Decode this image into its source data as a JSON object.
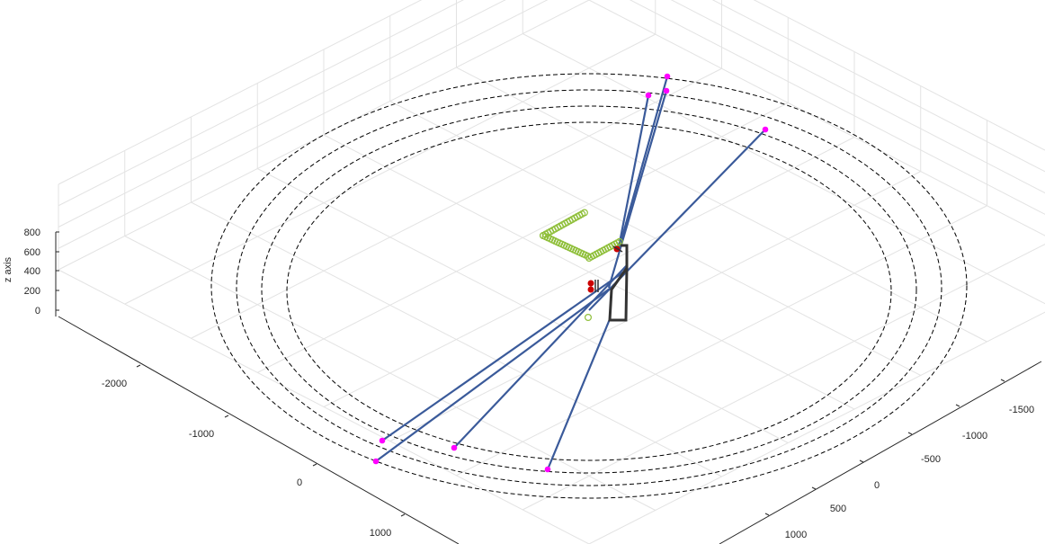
{
  "chart_data": {
    "type": "line3d",
    "title": "",
    "xlabel": "",
    "ylabel": "",
    "zlabel": "z axis",
    "grid": true,
    "x_ticks": [
      "-2000",
      "-1000",
      "0",
      "1000"
    ],
    "y_ticks": [
      "-1500",
      "-1000",
      "-500",
      "0",
      "500",
      "1000"
    ],
    "z_ticks": [
      "800",
      "600",
      "400",
      "200",
      "0"
    ],
    "ranges": {
      "x": [
        -2500,
        1500
      ],
      "y": [
        -2000,
        1200
      ],
      "z": [
        0,
        800
      ]
    },
    "colors": {
      "cable": "#3a5a9a",
      "anchor": "#ff00ff",
      "trajectory": "#8fbf3a",
      "frame": "#333333",
      "payload": "#cc0000",
      "circle": "#000000"
    },
    "series": [
      {
        "kind": "circle",
        "style": "dashed",
        "radius_values": [
          2250,
          2150,
          2050,
          1950
        ],
        "z": 0
      },
      {
        "kind": "anchor_points",
        "points": [
          [
            -2180,
            1050,
            0
          ],
          [
            -1950,
            1120,
            0
          ],
          [
            -1100,
            1050,
            0
          ],
          [
            -600,
            620,
            0
          ],
          [
            1220,
            -1480,
            0
          ],
          [
            1200,
            -1380,
            0
          ],
          [
            1100,
            -1250,
            0
          ],
          [
            1050,
            -650,
            0
          ]
        ]
      },
      {
        "kind": "cable_segments",
        "lines": [
          [
            [
              -2180,
              1050,
              0
            ],
            [
              -40,
              30,
              260
            ]
          ],
          [
            [
              -1950,
              1120,
              0
            ],
            [
              60,
              -40,
              80
            ]
          ],
          [
            [
              -1100,
              1050,
              0
            ],
            [
              120,
              -90,
              300
            ]
          ],
          [
            [
              -600,
              620,
              0
            ],
            [
              100,
              -80,
              120
            ]
          ],
          [
            [
              1220,
              -1480,
              0
            ],
            [
              60,
              -20,
              180
            ]
          ],
          [
            [
              1200,
              -1380,
              0
            ],
            [
              -40,
              40,
              220
            ]
          ],
          [
            [
              1100,
              -1250,
              0
            ],
            [
              -10,
              60,
              160
            ]
          ],
          [
            [
              1050,
              -650,
              0
            ],
            [
              20,
              -40,
              260
            ]
          ]
        ]
      },
      {
        "kind": "trajectory",
        "points": [
          [
            -150,
            -320,
            520
          ],
          [
            -130,
            -300,
            520
          ],
          [
            -110,
            -280,
            520
          ],
          [
            -90,
            -260,
            520
          ],
          [
            -70,
            -240,
            520
          ],
          [
            -50,
            -220,
            520
          ],
          [
            -30,
            -200,
            520
          ],
          [
            -10,
            -180,
            520
          ],
          [
            10,
            -160,
            520
          ],
          [
            30,
            -140,
            520
          ],
          [
            40,
            -120,
            520
          ],
          [
            20,
            -90,
            520
          ],
          [
            0,
            -60,
            520
          ],
          [
            -20,
            -30,
            520
          ],
          [
            -40,
            0,
            520
          ],
          [
            -60,
            30,
            520
          ],
          [
            -80,
            60,
            520
          ],
          [
            -100,
            90,
            520
          ],
          [
            -120,
            120,
            520
          ],
          [
            -140,
            150,
            520
          ],
          [
            -160,
            180,
            520
          ],
          [
            -180,
            210,
            520
          ],
          [
            -190,
            240,
            520
          ],
          [
            -180,
            270,
            520
          ],
          [
            -160,
            290,
            520
          ],
          [
            -140,
            300,
            520
          ],
          [
            -120,
            310,
            520
          ],
          [
            -100,
            320,
            520
          ]
        ]
      },
      {
        "kind": "platform_frame",
        "points": [
          [
            -60,
            40,
            260
          ],
          [
            -20,
            10,
            200
          ],
          [
            10,
            -10,
            40
          ],
          [
            40,
            -40,
            40
          ],
          [
            60,
            -60,
            200
          ],
          [
            40,
            -40,
            260
          ],
          [
            -60,
            40,
            260
          ]
        ]
      }
    ]
  }
}
